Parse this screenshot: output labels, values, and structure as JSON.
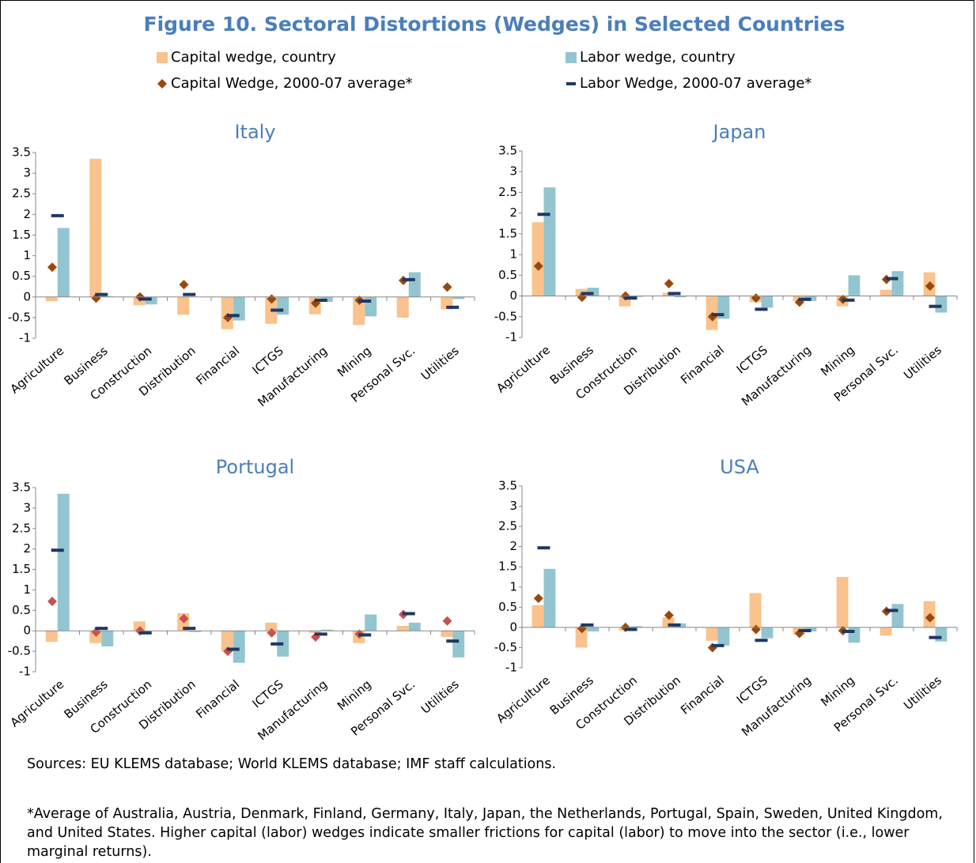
{
  "title": "Figure 10. Sectoral Distortions (Wedges) in Selected Countries",
  "legend": [
    "Capital wedge, country",
    "Labor wedge, country",
    "Capital Wedge, 2000-07 average*",
    "Labor Wedge, 2000-07 average*"
  ],
  "chart_data": [
    {
      "type": "bar",
      "title": "Italy",
      "categories": [
        "Agriculture",
        "Business",
        "Construction",
        "Distribution",
        "Financial",
        "ICTGS",
        "Manufacturing",
        "Mining",
        "Personal Svc.",
        "Utilities"
      ],
      "ylim": [
        -1,
        3.5
      ],
      "yticks": [
        3.5,
        3,
        2.5,
        2,
        1.5,
        1,
        0.5,
        0,
        -0.5,
        -1
      ],
      "series": [
        {
          "color": "#fac28c",
          "marker": "bar",
          "values": [
            -0.1,
            3.35,
            -0.2,
            -0.43,
            -0.78,
            -0.65,
            -0.42,
            -0.68,
            -0.5,
            -0.3
          ]
        },
        {
          "color": "#93c5d0",
          "marker": "bar",
          "values": [
            1.67,
            0.02,
            -0.18,
            0.0,
            -0.57,
            -0.43,
            -0.12,
            -0.47,
            0.6,
            -0.05
          ]
        },
        {
          "color": "#99480c",
          "marker": "diamond",
          "values": [
            0.72,
            -0.03,
            0.0,
            0.3,
            -0.5,
            -0.05,
            -0.15,
            -0.08,
            0.4,
            0.24
          ]
        },
        {
          "color": "#1f3864",
          "marker": "dash",
          "values": [
            1.97,
            0.06,
            -0.05,
            0.06,
            -0.45,
            -0.32,
            -0.08,
            -0.1,
            0.42,
            -0.25
          ]
        }
      ]
    },
    {
      "type": "bar",
      "title": "Japan",
      "categories": [
        "Agriculture",
        "Business",
        "Construction",
        "Distribution",
        "Financial",
        "ICTGS",
        "Manufacturing",
        "Mining",
        "Personal Svc.",
        "Utilities"
      ],
      "ylim": [
        -1,
        3.5
      ],
      "yticks": [
        3.5,
        3,
        2.5,
        2,
        1.5,
        1,
        0.5,
        0,
        -0.5,
        -1
      ],
      "series": [
        {
          "color": "#fac28c",
          "marker": "bar",
          "values": [
            1.78,
            0.17,
            -0.25,
            0.08,
            -0.82,
            -0.15,
            -0.12,
            -0.25,
            0.15,
            0.57
          ]
        },
        {
          "color": "#93c5d0",
          "marker": "bar",
          "values": [
            2.62,
            0.2,
            -0.02,
            -0.03,
            -0.55,
            -0.28,
            -0.12,
            0.5,
            0.6,
            -0.4
          ]
        },
        {
          "color": "#99480c",
          "marker": "diamond",
          "values": [
            0.72,
            -0.03,
            0.0,
            0.3,
            -0.5,
            -0.05,
            -0.15,
            -0.08,
            0.4,
            0.24
          ]
        },
        {
          "color": "#1f3864",
          "marker": "dash",
          "values": [
            1.97,
            0.06,
            -0.05,
            0.06,
            -0.45,
            -0.32,
            -0.08,
            -0.1,
            0.42,
            -0.25
          ]
        }
      ]
    },
    {
      "type": "bar",
      "title": "Portugal",
      "categories": [
        "Agriculture",
        "Business",
        "Construction",
        "Distribution",
        "Financial",
        "ICTGS",
        "Manufacturing",
        "Mining",
        "Personal Svc.",
        "Utilities"
      ],
      "ylim": [
        -1,
        3.5
      ],
      "yticks": [
        3.5,
        3,
        2.5,
        2,
        1.5,
        1,
        0.5,
        0,
        -0.5,
        -1
      ],
      "series": [
        {
          "color": "#fac28c",
          "marker": "bar",
          "values": [
            -0.27,
            -0.3,
            0.23,
            0.43,
            -0.5,
            0.2,
            -0.05,
            -0.3,
            0.12,
            -0.15
          ]
        },
        {
          "color": "#93c5d0",
          "marker": "bar",
          "values": [
            3.35,
            -0.38,
            0.0,
            -0.03,
            -0.78,
            -0.63,
            0.03,
            0.4,
            0.2,
            -0.65
          ]
        },
        {
          "color": "#c9504d",
          "marker": "diamond",
          "values": [
            0.72,
            -0.03,
            0.0,
            0.3,
            -0.5,
            -0.05,
            -0.15,
            -0.08,
            0.4,
            0.24
          ]
        },
        {
          "color": "#1f3864",
          "marker": "dash",
          "values": [
            1.97,
            0.06,
            -0.05,
            0.06,
            -0.45,
            -0.32,
            -0.08,
            -0.1,
            0.42,
            -0.25
          ]
        }
      ]
    },
    {
      "type": "bar",
      "title": "USA",
      "categories": [
        "Agriculture",
        "Business",
        "Construction",
        "Distribution",
        "Financial",
        "ICTGS",
        "Manufacturing",
        "Mining",
        "Personal Svc.",
        "Utilities"
      ],
      "ylim": [
        -1,
        3.5
      ],
      "yticks": [
        3.5,
        3,
        2.5,
        2,
        1.5,
        1,
        0.5,
        0,
        -0.5,
        -1
      ],
      "series": [
        {
          "color": "#fac28c",
          "marker": "bar",
          "values": [
            0.55,
            -0.5,
            -0.08,
            0.25,
            -0.33,
            0.85,
            -0.18,
            1.25,
            -0.2,
            0.65
          ]
        },
        {
          "color": "#93c5d0",
          "marker": "bar",
          "values": [
            1.45,
            -0.1,
            0.03,
            0.1,
            -0.45,
            -0.27,
            -0.1,
            -0.38,
            0.58,
            -0.35
          ]
        },
        {
          "color": "#99480c",
          "marker": "diamond",
          "values": [
            0.72,
            -0.03,
            0.0,
            0.3,
            -0.5,
            -0.05,
            -0.15,
            -0.08,
            0.4,
            0.24
          ]
        },
        {
          "color": "#1f3864",
          "marker": "dash",
          "values": [
            1.97,
            0.06,
            -0.05,
            0.06,
            -0.45,
            -0.32,
            -0.08,
            -0.1,
            0.42,
            -0.25
          ]
        }
      ]
    }
  ],
  "sources": "Sources: EU KLEMS database; World KLEMS database; IMF staff calculations.",
  "note": "*Average of Australia, Austria, Denmark, Finland, Germany, Italy, Japan, the Netherlands, Portugal, Spain, Sweden, United Kingdom, and United States. Higher capital (labor) wedges indicate smaller frictions for capital (labor) to move into the sector (i.e., lower marginal returns)."
}
